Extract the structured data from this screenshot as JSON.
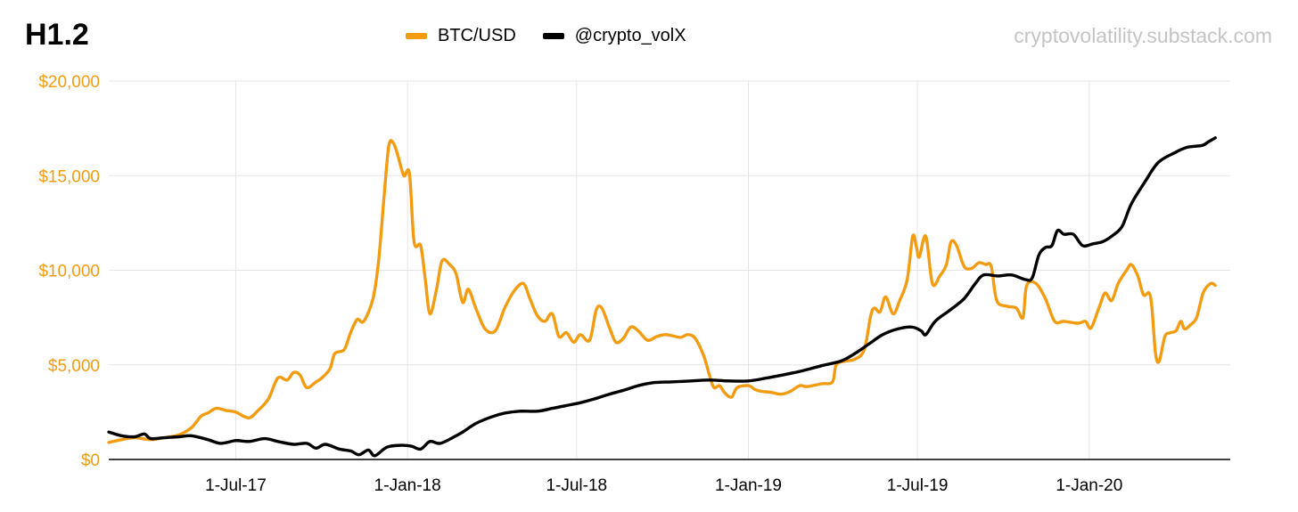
{
  "header": {
    "title": "H1.2",
    "watermark": "cryptovolatility.substack.com"
  },
  "colors": {
    "btc": "#F39C12",
    "volx": "#000000",
    "grid": "#e6e6e6",
    "ytick": "#F39C12",
    "watermark": "#c4c4c4"
  },
  "chart_data": {
    "type": "line",
    "title": "H1.2",
    "xlabel": "",
    "ylabel": "",
    "x_range": [
      "2017-02-15",
      "2020-05-31"
    ],
    "ylim": [
      0,
      20000
    ],
    "y_ticks": [
      {
        "value": 0,
        "label": "$0"
      },
      {
        "value": 5000,
        "label": "$5,000"
      },
      {
        "value": 10000,
        "label": "$10,000"
      },
      {
        "value": 15000,
        "label": "$15,000"
      },
      {
        "value": 20000,
        "label": "$20,000"
      }
    ],
    "x_ticks": [
      {
        "date": "2017-07-01",
        "label": "1-Jul-17"
      },
      {
        "date": "2018-01-01",
        "label": "1-Jan-18"
      },
      {
        "date": "2018-07-01",
        "label": "1-Jul-18"
      },
      {
        "date": "2019-01-01",
        "label": "1-Jan-19"
      },
      {
        "date": "2019-07-01",
        "label": "1-Jul-19"
      },
      {
        "date": "2020-01-01",
        "label": "1-Jan-20"
      }
    ],
    "grid": true,
    "legend_position": "top-center",
    "series": [
      {
        "name": "BTC/USD",
        "color": "#F39C12",
        "points": [
          [
            "2017-02-15",
            900
          ],
          [
            "2017-03-01",
            1050
          ],
          [
            "2017-03-15",
            1150
          ],
          [
            "2017-04-01",
            1050
          ],
          [
            "2017-04-15",
            1150
          ],
          [
            "2017-05-01",
            1300
          ],
          [
            "2017-05-15",
            1700
          ],
          [
            "2017-05-25",
            2300
          ],
          [
            "2017-06-01",
            2450
          ],
          [
            "2017-06-10",
            2700
          ],
          [
            "2017-06-20",
            2600
          ],
          [
            "2017-07-01",
            2500
          ],
          [
            "2017-07-15",
            2200
          ],
          [
            "2017-07-25",
            2600
          ],
          [
            "2017-08-05",
            3200
          ],
          [
            "2017-08-15",
            4300
          ],
          [
            "2017-08-25",
            4200
          ],
          [
            "2017-09-01",
            4600
          ],
          [
            "2017-09-08",
            4450
          ],
          [
            "2017-09-15",
            3800
          ],
          [
            "2017-09-25",
            4100
          ],
          [
            "2017-10-01",
            4300
          ],
          [
            "2017-10-10",
            4800
          ],
          [
            "2017-10-15",
            5600
          ],
          [
            "2017-10-25",
            5800
          ],
          [
            "2017-11-01",
            6700
          ],
          [
            "2017-11-08",
            7400
          ],
          [
            "2017-11-15",
            7300
          ],
          [
            "2017-11-25",
            8500
          ],
          [
            "2017-12-01",
            10500
          ],
          [
            "2017-12-07",
            14000
          ],
          [
            "2017-12-12",
            16600
          ],
          [
            "2017-12-17",
            16700
          ],
          [
            "2017-12-22",
            16000
          ],
          [
            "2017-12-28",
            15000
          ],
          [
            "2018-01-03",
            15100
          ],
          [
            "2018-01-08",
            11500
          ],
          [
            "2018-01-15",
            11300
          ],
          [
            "2018-01-20",
            9500
          ],
          [
            "2018-01-25",
            7700
          ],
          [
            "2018-02-01",
            9000
          ],
          [
            "2018-02-07",
            10500
          ],
          [
            "2018-02-15",
            10300
          ],
          [
            "2018-02-22",
            9800
          ],
          [
            "2018-03-01",
            8300
          ],
          [
            "2018-03-07",
            9000
          ],
          [
            "2018-03-15",
            8000
          ],
          [
            "2018-03-25",
            6900
          ],
          [
            "2018-04-05",
            6800
          ],
          [
            "2018-04-15",
            8000
          ],
          [
            "2018-04-25",
            8900
          ],
          [
            "2018-05-05",
            9300
          ],
          [
            "2018-05-12",
            8500
          ],
          [
            "2018-05-20",
            7600
          ],
          [
            "2018-05-28",
            7300
          ],
          [
            "2018-06-05",
            7700
          ],
          [
            "2018-06-12",
            6500
          ],
          [
            "2018-06-20",
            6700
          ],
          [
            "2018-06-28",
            6200
          ],
          [
            "2018-07-05",
            6600
          ],
          [
            "2018-07-15",
            6300
          ],
          [
            "2018-07-22",
            7900
          ],
          [
            "2018-07-28",
            8000
          ],
          [
            "2018-08-05",
            7000
          ],
          [
            "2018-08-12",
            6200
          ],
          [
            "2018-08-20",
            6400
          ],
          [
            "2018-08-28",
            7000
          ],
          [
            "2018-09-05",
            6800
          ],
          [
            "2018-09-15",
            6300
          ],
          [
            "2018-09-25",
            6500
          ],
          [
            "2018-10-05",
            6600
          ],
          [
            "2018-10-20",
            6450
          ],
          [
            "2018-10-28",
            6600
          ],
          [
            "2018-11-05",
            6400
          ],
          [
            "2018-11-14",
            5500
          ],
          [
            "2018-11-20",
            4500
          ],
          [
            "2018-11-25",
            3800
          ],
          [
            "2018-12-01",
            3900
          ],
          [
            "2018-12-07",
            3500
          ],
          [
            "2018-12-14",
            3300
          ],
          [
            "2018-12-20",
            3800
          ],
          [
            "2019-01-01",
            3900
          ],
          [
            "2019-01-08",
            3700
          ],
          [
            "2019-01-15",
            3600
          ],
          [
            "2019-01-25",
            3550
          ],
          [
            "2019-02-05",
            3450
          ],
          [
            "2019-02-15",
            3600
          ],
          [
            "2019-02-25",
            3900
          ],
          [
            "2019-03-05",
            3850
          ],
          [
            "2019-03-20",
            4000
          ],
          [
            "2019-04-01",
            4100
          ],
          [
            "2019-04-05",
            5000
          ],
          [
            "2019-04-15",
            5200
          ],
          [
            "2019-04-25",
            5300
          ],
          [
            "2019-05-05",
            5800
          ],
          [
            "2019-05-12",
            7600
          ],
          [
            "2019-05-16",
            8000
          ],
          [
            "2019-05-22",
            7800
          ],
          [
            "2019-05-28",
            8600
          ],
          [
            "2019-06-05",
            7700
          ],
          [
            "2019-06-12",
            8400
          ],
          [
            "2019-06-20",
            9500
          ],
          [
            "2019-06-26",
            11800
          ],
          [
            "2019-06-30",
            11200
          ],
          [
            "2019-07-03",
            10700
          ],
          [
            "2019-07-10",
            11800
          ],
          [
            "2019-07-17",
            9300
          ],
          [
            "2019-07-25",
            9700
          ],
          [
            "2019-08-01",
            10300
          ],
          [
            "2019-08-06",
            11500
          ],
          [
            "2019-08-12",
            11300
          ],
          [
            "2019-08-20",
            10200
          ],
          [
            "2019-08-28",
            10100
          ],
          [
            "2019-09-05",
            10400
          ],
          [
            "2019-09-12",
            10300
          ],
          [
            "2019-09-18",
            10200
          ],
          [
            "2019-09-24",
            8400
          ],
          [
            "2019-10-05",
            8100
          ],
          [
            "2019-10-15",
            8000
          ],
          [
            "2019-10-22",
            7500
          ],
          [
            "2019-10-26",
            9200
          ],
          [
            "2019-11-05",
            9300
          ],
          [
            "2019-11-15",
            8500
          ],
          [
            "2019-11-25",
            7300
          ],
          [
            "2019-12-05",
            7300
          ],
          [
            "2019-12-20",
            7200
          ],
          [
            "2019-12-28",
            7300
          ],
          [
            "2020-01-03",
            6950
          ],
          [
            "2020-01-12",
            8100
          ],
          [
            "2020-01-18",
            8800
          ],
          [
            "2020-01-25",
            8400
          ],
          [
            "2020-02-01",
            9300
          ],
          [
            "2020-02-10",
            10000
          ],
          [
            "2020-02-15",
            10300
          ],
          [
            "2020-02-22",
            9700
          ],
          [
            "2020-02-28",
            8700
          ],
          [
            "2020-03-05",
            8800
          ],
          [
            "2020-03-08",
            8100
          ],
          [
            "2020-03-12",
            5600
          ],
          [
            "2020-03-16",
            5200
          ],
          [
            "2020-03-22",
            6500
          ],
          [
            "2020-03-28",
            6700
          ],
          [
            "2020-04-03",
            6800
          ],
          [
            "2020-04-08",
            7300
          ],
          [
            "2020-04-12",
            6900
          ],
          [
            "2020-04-18",
            7100
          ],
          [
            "2020-04-25",
            7500
          ],
          [
            "2020-05-02",
            8800
          ],
          [
            "2020-05-10",
            9300
          ],
          [
            "2020-05-15",
            9200
          ]
        ]
      },
      {
        "name": "@crypto_volX",
        "color": "#000000",
        "points": [
          [
            "2017-02-15",
            1450
          ],
          [
            "2017-03-01",
            1250
          ],
          [
            "2017-03-15",
            1200
          ],
          [
            "2017-03-25",
            1350
          ],
          [
            "2017-04-01",
            1100
          ],
          [
            "2017-04-15",
            1150
          ],
          [
            "2017-05-01",
            1200
          ],
          [
            "2017-05-15",
            1250
          ],
          [
            "2017-06-01",
            1050
          ],
          [
            "2017-06-15",
            850
          ],
          [
            "2017-07-01",
            1000
          ],
          [
            "2017-07-15",
            950
          ],
          [
            "2017-08-01",
            1100
          ],
          [
            "2017-08-15",
            950
          ],
          [
            "2017-09-01",
            800
          ],
          [
            "2017-09-15",
            850
          ],
          [
            "2017-09-25",
            600
          ],
          [
            "2017-10-05",
            800
          ],
          [
            "2017-10-20",
            550
          ],
          [
            "2017-11-01",
            450
          ],
          [
            "2017-11-10",
            250
          ],
          [
            "2017-11-20",
            500
          ],
          [
            "2017-11-27",
            200
          ],
          [
            "2017-12-10",
            650
          ],
          [
            "2017-12-25",
            750
          ],
          [
            "2018-01-05",
            700
          ],
          [
            "2018-01-15",
            550
          ],
          [
            "2018-01-25",
            950
          ],
          [
            "2018-02-05",
            850
          ],
          [
            "2018-02-20",
            1200
          ],
          [
            "2018-03-01",
            1450
          ],
          [
            "2018-03-15",
            1900
          ],
          [
            "2018-04-01",
            2250
          ],
          [
            "2018-04-15",
            2450
          ],
          [
            "2018-05-01",
            2550
          ],
          [
            "2018-05-20",
            2550
          ],
          [
            "2018-06-05",
            2700
          ],
          [
            "2018-06-20",
            2850
          ],
          [
            "2018-07-05",
            3000
          ],
          [
            "2018-07-20",
            3200
          ],
          [
            "2018-08-05",
            3450
          ],
          [
            "2018-08-20",
            3650
          ],
          [
            "2018-09-05",
            3900
          ],
          [
            "2018-09-20",
            4050
          ],
          [
            "2018-10-10",
            4100
          ],
          [
            "2018-11-01",
            4150
          ],
          [
            "2018-11-20",
            4200
          ],
          [
            "2018-12-10",
            4150
          ],
          [
            "2019-01-01",
            4150
          ],
          [
            "2019-01-20",
            4300
          ],
          [
            "2019-02-10",
            4500
          ],
          [
            "2019-03-01",
            4700
          ],
          [
            "2019-03-20",
            4950
          ],
          [
            "2019-04-10",
            5200
          ],
          [
            "2019-04-25",
            5600
          ],
          [
            "2019-05-10",
            6100
          ],
          [
            "2019-05-25",
            6600
          ],
          [
            "2019-06-10",
            6900
          ],
          [
            "2019-06-25",
            7000
          ],
          [
            "2019-07-05",
            6800
          ],
          [
            "2019-07-10",
            6600
          ],
          [
            "2019-07-20",
            7300
          ],
          [
            "2019-08-05",
            7900
          ],
          [
            "2019-08-20",
            8500
          ],
          [
            "2019-09-01",
            9300
          ],
          [
            "2019-09-10",
            9750
          ],
          [
            "2019-09-25",
            9700
          ],
          [
            "2019-10-10",
            9750
          ],
          [
            "2019-10-25",
            9500
          ],
          [
            "2019-11-01",
            9600
          ],
          [
            "2019-11-08",
            10800
          ],
          [
            "2019-11-15",
            11200
          ],
          [
            "2019-11-22",
            11300
          ],
          [
            "2019-11-28",
            12100
          ],
          [
            "2019-12-05",
            11900
          ],
          [
            "2019-12-15",
            11900
          ],
          [
            "2019-12-25",
            11300
          ],
          [
            "2020-01-05",
            11400
          ],
          [
            "2020-01-15",
            11500
          ],
          [
            "2020-01-25",
            11800
          ],
          [
            "2020-02-05",
            12300
          ],
          [
            "2020-02-15",
            13500
          ],
          [
            "2020-03-01",
            14700
          ],
          [
            "2020-03-15",
            15700
          ],
          [
            "2020-04-01",
            16200
          ],
          [
            "2020-04-15",
            16500
          ],
          [
            "2020-05-01",
            16600
          ],
          [
            "2020-05-08",
            16800
          ],
          [
            "2020-05-15",
            17000
          ]
        ]
      }
    ]
  }
}
